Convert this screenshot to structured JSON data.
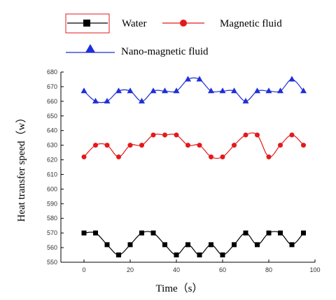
{
  "chart_data": {
    "type": "line",
    "xlabel": "Time（s）",
    "ylabel": "Heat transfer speed（w）",
    "xlim": [
      -10,
      100
    ],
    "ylim": [
      550,
      680
    ],
    "xticks": [
      0,
      20,
      40,
      60,
      80,
      100
    ],
    "yticks": [
      550,
      560,
      570,
      580,
      590,
      600,
      610,
      620,
      630,
      640,
      650,
      660,
      670,
      680
    ],
    "legend_placement": "top",
    "x": [
      0,
      5,
      10,
      15,
      20,
      25,
      30,
      35,
      40,
      45,
      50,
      55,
      60,
      65,
      70,
      75,
      80,
      85,
      90,
      95
    ],
    "series": [
      {
        "name": "Water",
        "color": "#000000",
        "marker": "square",
        "values": [
          570,
          570,
          562,
          555,
          562,
          570,
          570,
          562,
          555,
          562,
          555,
          562,
          555,
          562,
          570,
          562,
          570,
          570,
          562,
          570
        ]
      },
      {
        "name": "Magnetic fluid",
        "color": "#e31a1c",
        "marker": "circle",
        "values": [
          622,
          630,
          630,
          622,
          630,
          630,
          637,
          637,
          637,
          630,
          630,
          622,
          622,
          630,
          637,
          637,
          622,
          630,
          637,
          630
        ]
      },
      {
        "name": "Nano-magnetic fluid",
        "color": "#1f2fd6",
        "marker": "triangle",
        "values": [
          667,
          660,
          660,
          667,
          667,
          660,
          667,
          667,
          667,
          675,
          675,
          667,
          667,
          667,
          660,
          667,
          667,
          667,
          675,
          667
        ]
      }
    ]
  }
}
